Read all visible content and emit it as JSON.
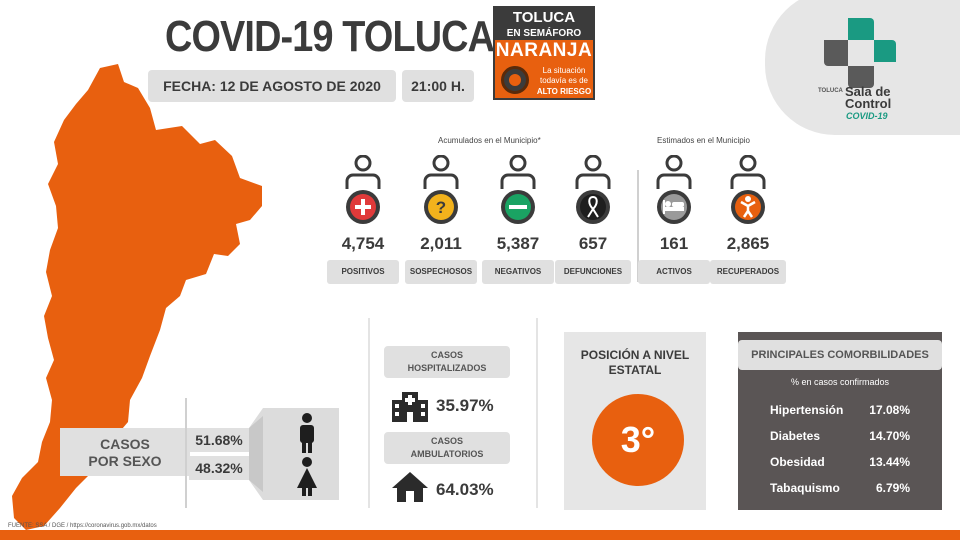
{
  "header": {
    "title": "COVID-19 TOLUCA",
    "date": "FECHA: 12 DE AGOSTO DE 2020",
    "time": "21:00 H."
  },
  "badge": {
    "line1": "TOLUCA",
    "line2": "EN SEMÁFORO",
    "line3": "NARANJA",
    "line4": "La situación todavía es de",
    "line5": "ALTO RIESGO"
  },
  "logo": {
    "seal": "TOLUCA",
    "title_line1": "Sala de",
    "title_line2": "Control",
    "subtitle": "COVID-19",
    "colors": {
      "gray": "#5a5a5a",
      "green": "#1a9a82"
    }
  },
  "stats": {
    "accumulated_label": "Acumulados en el Municipio*",
    "estimated_label": "Estimados en el Municipio",
    "items": [
      {
        "value": "4,754",
        "label": "POSITIVOS",
        "icon": "plus-icon",
        "color": "#e03a3a"
      },
      {
        "value": "2,011",
        "label": "SOSPECHOSOS",
        "icon": "question-icon",
        "color": "#f2b21c"
      },
      {
        "value": "5,387",
        "label": "NEGATIVOS",
        "icon": "minus-icon",
        "color": "#1aa363"
      },
      {
        "value": "657",
        "label": "DEFUNCIONES",
        "icon": "ribbon-icon",
        "color": "#2b2b2b"
      },
      {
        "value": "161",
        "label": "ACTIVOS",
        "icon": "bed-icon",
        "color": "#8a8a8a"
      },
      {
        "value": "2,865",
        "label": "RECUPERADOS",
        "icon": "person-icon",
        "color": "#e8600f"
      }
    ]
  },
  "sex": {
    "label_line1": "CASOS",
    "label_line2": "POR SEXO",
    "male_pct": "51.68%",
    "female_pct": "48.32%"
  },
  "hospital": {
    "hosp_label_line1": "CASOS",
    "hosp_label_line2": "HOSPITALIZADOS",
    "hosp_pct": "35.97%",
    "amb_label_line1": "CASOS",
    "amb_label_line2": "AMBULATORIOS",
    "amb_pct": "64.03%"
  },
  "position": {
    "title_line1": "POSICIÓN A NIVEL",
    "title_line2": "ESTATAL",
    "value": "3°"
  },
  "comorbidities": {
    "title": "PRINCIPALES COMORBILIDADES",
    "subtitle": "% en casos confirmados",
    "rows": [
      {
        "name": "Hipertensión",
        "value": "17.08%"
      },
      {
        "name": "Diabetes",
        "value": "14.70%"
      },
      {
        "name": "Obesidad",
        "value": "13.44%"
      },
      {
        "name": "Tabaquismo",
        "value": "6.79%"
      }
    ]
  },
  "footer": {
    "source": "FUENTE: SSA / DGE / https://coronavirus.gob.mx/datos"
  },
  "colors": {
    "accent": "#e8600f",
    "dark": "#3b3b3b",
    "panel": "#e0e0e0"
  }
}
